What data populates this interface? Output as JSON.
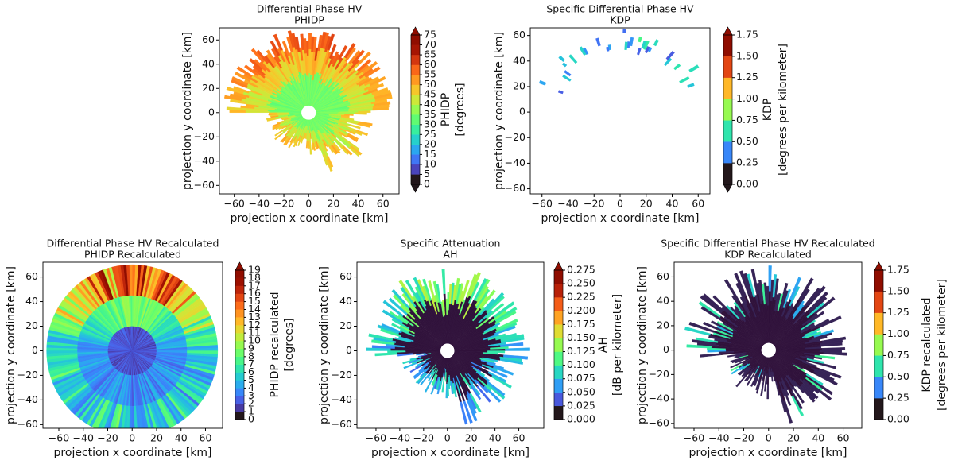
{
  "chart_data": [
    {
      "type": "radar-field",
      "title": "Differential Phase HV",
      "subtitle": "PHIDP",
      "xlabel": "projection x coordinate [km]",
      "ylabel": "projection y coordinate [km]",
      "xlim": [
        -72,
        73
      ],
      "ylim": [
        -67,
        70
      ],
      "xticks": [
        {
          "value": -60,
          "label": "−60"
        },
        {
          "value": -40,
          "label": "−40"
        },
        {
          "value": -20,
          "label": "−20"
        },
        0,
        20,
        40,
        60
      ],
      "yticks": [
        {
          "value": -60,
          "label": "−60"
        },
        {
          "value": -40,
          "label": "−40"
        },
        {
          "value": -20,
          "label": "−20"
        },
        0,
        20,
        40,
        60
      ],
      "colorbar": {
        "label": [
          "PHIDP",
          "[degrees]"
        ],
        "lim": [
          0,
          75
        ],
        "ticks": [
          0,
          5,
          10,
          15,
          20,
          25,
          30,
          35,
          40,
          45,
          50,
          55,
          60,
          65,
          70,
          75
        ],
        "colormap": "turbo",
        "extend": "both"
      }
    },
    {
      "type": "radar-field",
      "title": "Specific Differential Phase HV",
      "subtitle": "KDP",
      "xlabel": "projection x coordinate [km]",
      "ylabel": "projection y coordinate [km]",
      "xlim": [
        -69,
        69
      ],
      "ylim": [
        -64,
        66
      ],
      "xticks": [
        {
          "value": -60,
          "label": "−60"
        },
        {
          "value": -40,
          "label": "−40"
        },
        {
          "value": -20,
          "label": "−20"
        },
        0,
        20,
        40,
        60
      ],
      "yticks": [
        {
          "value": -60,
          "label": "−60"
        },
        {
          "value": -40,
          "label": "−40"
        },
        {
          "value": -20,
          "label": "−20"
        },
        0,
        20,
        40,
        60
      ],
      "colorbar": {
        "label": [
          "KDP",
          "[degrees per kilometer]"
        ],
        "lim": [
          0,
          1.75
        ],
        "ticks": [
          {
            "value": 0,
            "label": "0.00"
          },
          0.25,
          {
            "value": 0.5,
            "label": "0.50"
          },
          0.75,
          {
            "value": 1,
            "label": "1.00"
          },
          1.25,
          {
            "value": 1.5,
            "label": "1.50"
          },
          1.75
        ],
        "colormap": "turbo",
        "extend": "both"
      }
    },
    {
      "type": "radar-field",
      "title": "Differential Phase HV Recalculated",
      "subtitle": "PHIDP Recalculated",
      "xlabel": "projection x coordinate [km]",
      "ylabel": "projection y coordinate [km]",
      "xlim": [
        -73,
        74
      ],
      "ylim": [
        -63,
        72
      ],
      "xticks": [
        {
          "value": -60,
          "label": "−60"
        },
        {
          "value": -40,
          "label": "−40"
        },
        {
          "value": -20,
          "label": "−20"
        },
        0,
        20,
        40,
        60
      ],
      "yticks": [
        {
          "value": -60,
          "label": "−60"
        },
        {
          "value": -40,
          "label": "−40"
        },
        {
          "value": -20,
          "label": "−20"
        },
        0,
        20,
        40,
        60
      ],
      "colorbar": {
        "label": [
          "PHIDP recalculated",
          "[degrees]"
        ],
        "lim": [
          0,
          19
        ],
        "ticks": [
          0,
          1,
          2,
          3,
          4,
          5,
          6,
          7,
          8,
          9,
          10,
          11,
          12,
          13,
          14,
          15,
          16,
          17,
          18,
          19
        ],
        "colormap": "turbo",
        "extend": "max"
      }
    },
    {
      "type": "radar-field",
      "title": "Specific Attenuation",
      "subtitle": "AH",
      "xlabel": "projection x coordinate [km]",
      "ylabel": "projection y coordinate [km]",
      "xlim": [
        -76,
        81
      ],
      "ylim": [
        -63,
        72
      ],
      "xticks": [
        {
          "value": -60,
          "label": "−60"
        },
        {
          "value": -40,
          "label": "−40"
        },
        {
          "value": -20,
          "label": "−20"
        },
        0,
        20,
        40,
        60
      ],
      "yticks": [
        {
          "value": -60,
          "label": "−60"
        },
        {
          "value": -40,
          "label": "−40"
        },
        {
          "value": -20,
          "label": "−20"
        },
        0,
        20,
        40,
        60
      ],
      "colorbar": {
        "label": [
          "AH",
          "[dB per kilometer]"
        ],
        "lim": [
          0,
          0.275
        ],
        "ticks": [
          {
            "value": 0,
            "label": "0.000"
          },
          0.025,
          {
            "value": 0.05,
            "label": "0.050"
          },
          0.075,
          {
            "value": 0.1,
            "label": "0.100"
          },
          0.125,
          {
            "value": 0.15,
            "label": "0.150"
          },
          0.175,
          {
            "value": 0.2,
            "label": "0.200"
          },
          0.225,
          {
            "value": 0.25,
            "label": "0.250"
          },
          0.275
        ],
        "colormap": "turbo",
        "extend": "max"
      }
    },
    {
      "type": "radar-field",
      "title": "Specific Differential Phase HV Recalculated",
      "subtitle": "KDP Recalculated",
      "xlabel": "projection x coordinate [km]",
      "ylabel": "projection y coordinate [km]",
      "xlim": [
        -76,
        75
      ],
      "ylim": [
        -64,
        72
      ],
      "xticks": [
        {
          "value": -60,
          "label": "−60"
        },
        {
          "value": -40,
          "label": "−40"
        },
        {
          "value": -20,
          "label": "−20"
        },
        0,
        20,
        40,
        60
      ],
      "yticks": [
        {
          "value": -60,
          "label": "−60"
        },
        {
          "value": -40,
          "label": "−40"
        },
        {
          "value": -20,
          "label": "−20"
        },
        0,
        20,
        40,
        60
      ],
      "colorbar": {
        "label": [
          "KDP recalculated",
          "[degrees per kilometer]"
        ],
        "lim": [
          0,
          1.75
        ],
        "ticks": [
          {
            "value": 0,
            "label": "0.00"
          },
          0.25,
          {
            "value": 0.5,
            "label": "0.50"
          },
          0.75,
          {
            "value": 1,
            "label": "1.00"
          },
          1.25,
          {
            "value": 1.5,
            "label": "1.50"
          },
          1.75
        ],
        "colormap": "turbo",
        "extend": "max"
      }
    }
  ]
}
